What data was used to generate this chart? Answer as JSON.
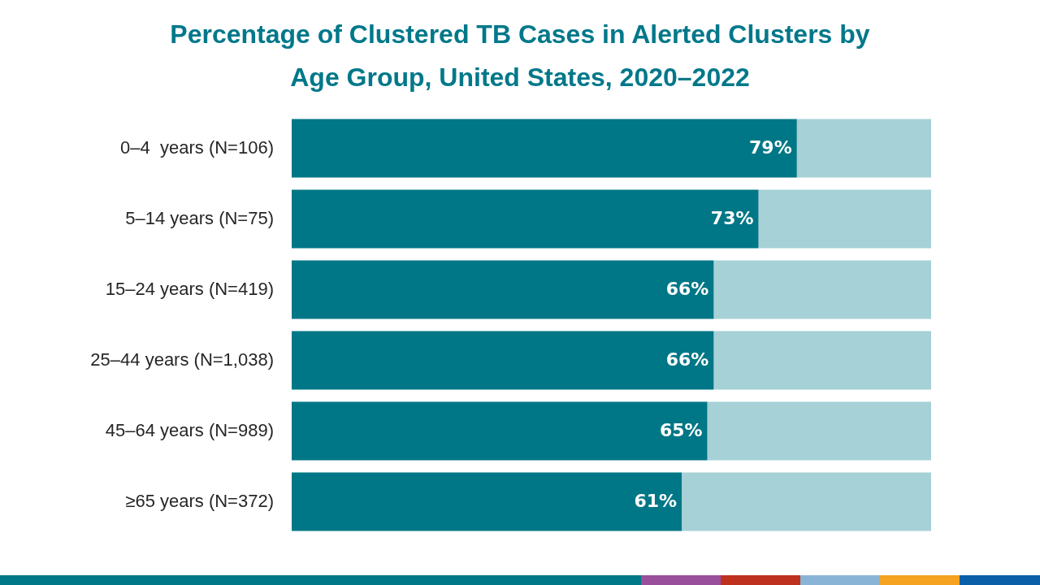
{
  "chart_data": {
    "type": "bar",
    "orientation": "horizontal",
    "stacked": true,
    "title": "Percentage of Clustered TB Cases in Alerted Clusters by Age Group, United States, 2020–2022",
    "categories": [
      "0–4  years (N=106)",
      "5–14 years (N=75)",
      "15–24 years (N=419)",
      "25–44 years (N=1,038)",
      "45–64 years (N=989)",
      "≥65 years (N=372)"
    ],
    "series": [
      {
        "color": "#007786",
        "values": [
          79,
          73,
          66,
          66,
          65,
          61
        ],
        "value_labels": [
          "79%",
          "73%",
          "66%",
          "66%",
          "65%",
          "61%"
        ]
      },
      {
        "color": "#a5d1d7",
        "values": [
          21,
          27,
          34,
          34,
          35,
          39
        ]
      }
    ],
    "xlim": [
      0,
      100
    ],
    "tick_labels": "y",
    "legend": false
  }
}
